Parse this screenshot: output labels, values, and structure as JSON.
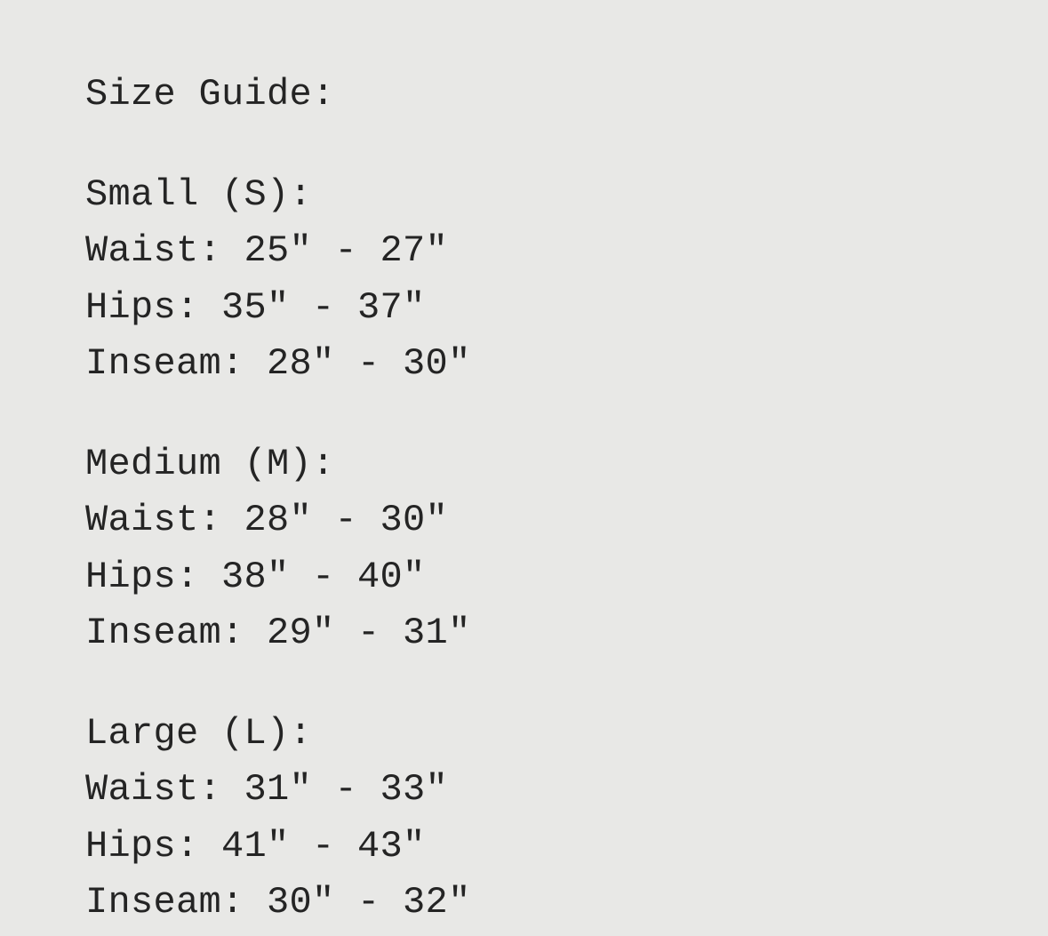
{
  "page": {
    "background_color": "#e8e8e6",
    "text_color": "#242424"
  },
  "size_guide": {
    "title": "Size Guide:",
    "sections": [
      {
        "label": "Small (S):",
        "measurements": [
          "Waist: 25\" - 27\"",
          "Hips: 35\" - 37\"",
          "Inseam: 28\" - 30\""
        ]
      },
      {
        "label": "Medium (M):",
        "measurements": [
          "Waist: 28\" - 30\"",
          "Hips: 38\" - 40\"",
          "Inseam: 29\" - 31\""
        ]
      },
      {
        "label": "Large (L):",
        "measurements": [
          "Waist: 31\" - 33\"",
          "Hips: 41\" - 43\"",
          "Inseam: 30\" - 32\""
        ]
      }
    ]
  }
}
